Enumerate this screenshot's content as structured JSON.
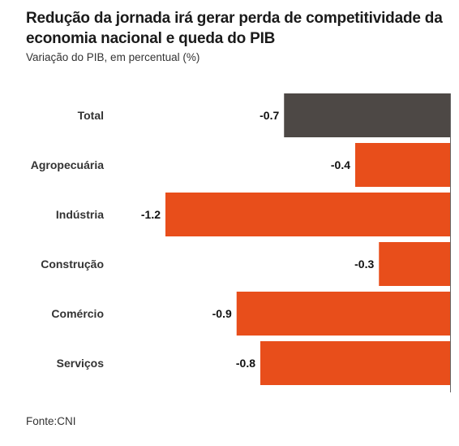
{
  "title": "Redução da jornada irá gerar perda de competitividade da economia nacional e queda do PIB",
  "subtitle": "Variação do PIB, em percentual (%)",
  "source": "Fonte:CNI",
  "colors": {
    "highlight": "#4d4845",
    "bars": "#e84e1b",
    "axis": "#666666",
    "label": "#333333",
    "value": "#111111"
  },
  "chart_data": {
    "type": "bar",
    "orientation": "horizontal",
    "categories": [
      "Total",
      "Agropecuária",
      "Indústria",
      "Construção",
      "Comércio",
      "Serviços"
    ],
    "values": [
      -0.7,
      -0.4,
      -1.2,
      -0.3,
      -0.9,
      -0.8
    ],
    "value_labels": [
      "-0.7",
      "-0.4",
      "-1.2",
      "-0.3",
      "-0.9",
      "-0.8"
    ],
    "xlim": [
      -1.2,
      0
    ],
    "grid": false,
    "legend": "none"
  }
}
